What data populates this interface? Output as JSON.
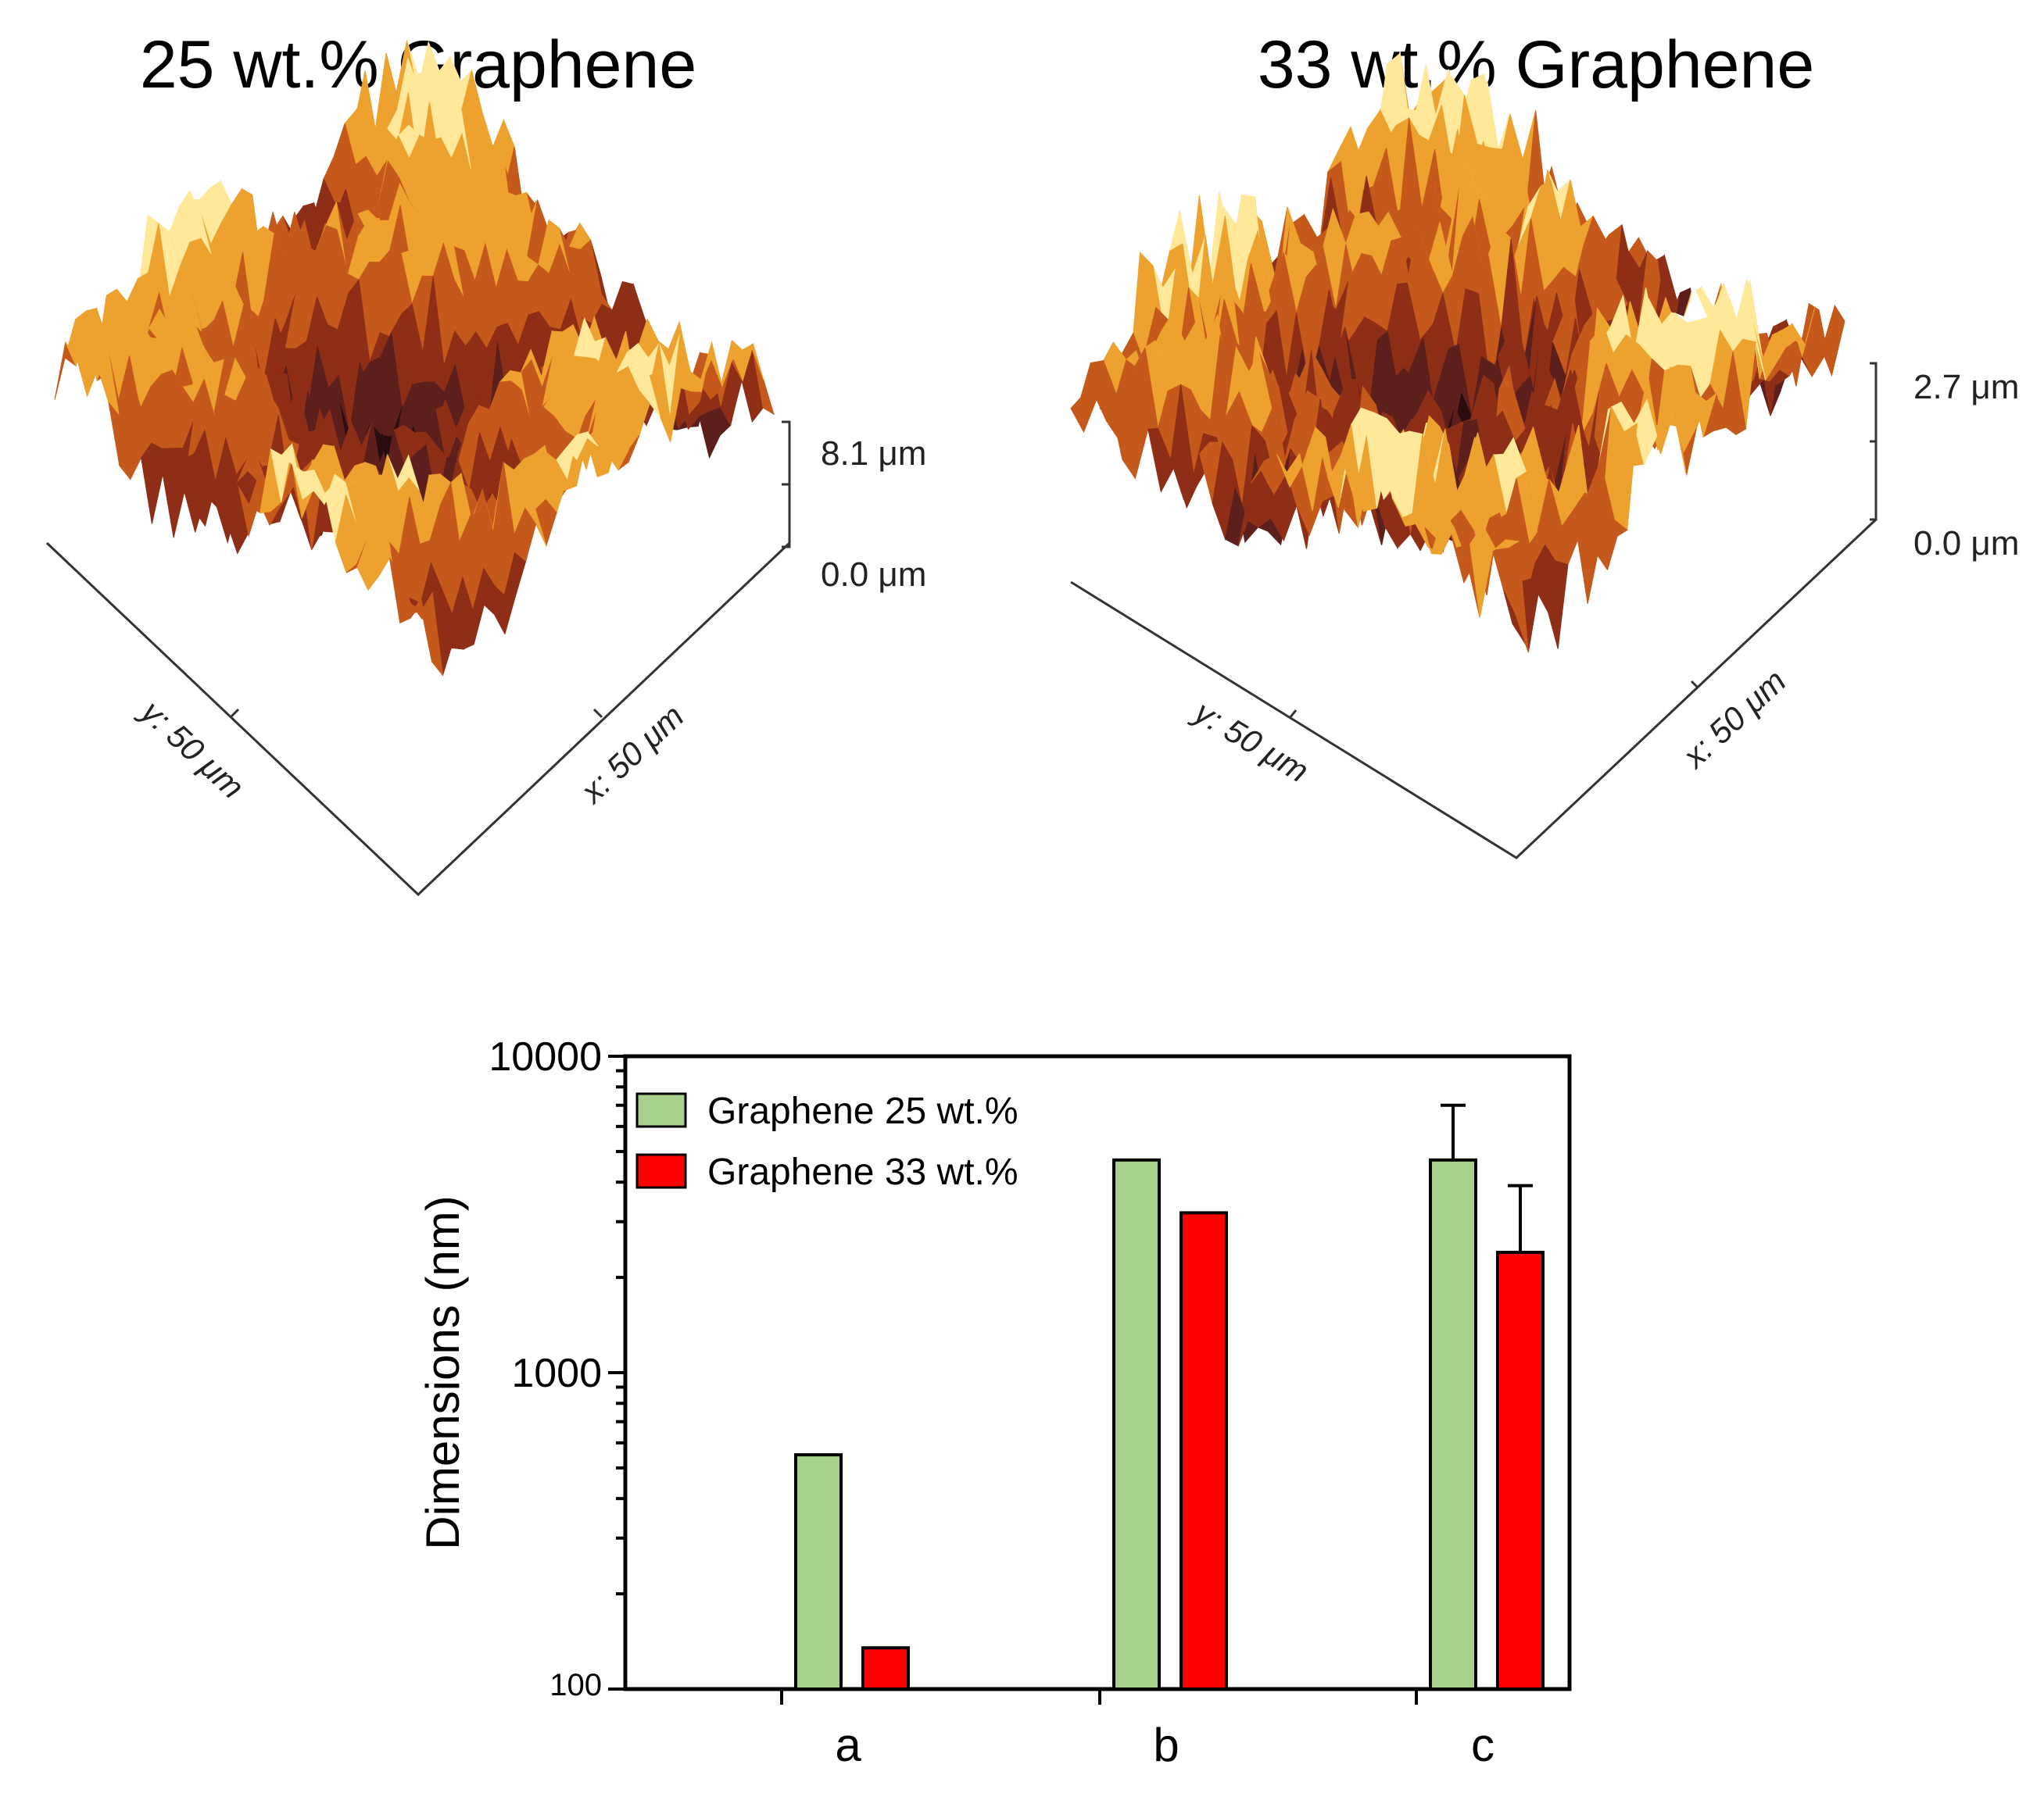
{
  "panels": [
    {
      "title": "25 wt.% Graphene",
      "z_max_label": "8.1 μm",
      "z_min_label": "0.0 μm",
      "y_axis_label": "y: 50 μm",
      "x_axis_label": "x: 50 μm",
      "colormap": [
        "#2a0d0f",
        "#5c1f1c",
        "#8f2e17",
        "#c5591c",
        "#eda22f",
        "#ffe89a",
        "#ffffff"
      ]
    },
    {
      "title": "33 wt.% Graphene",
      "z_max_label": "2.7 μm",
      "z_min_label": "0.0 μm",
      "y_axis_label": "y: 50 μm",
      "x_axis_label": "x: 50 μm",
      "colormap": [
        "#2a0d0f",
        "#5c1f1c",
        "#8f2e17",
        "#c5591c",
        "#eda22f",
        "#ffe89a",
        "#ffffff"
      ]
    }
  ],
  "chart_data": {
    "type": "bar",
    "title": "",
    "xlabel": "",
    "ylabel": "Dimensions (nm)",
    "yscale": "log",
    "ylim": [
      100,
      10000
    ],
    "yticks": [
      100,
      1000,
      10000
    ],
    "ytick_labels": [
      "100",
      "1000",
      "10000"
    ],
    "categories": [
      "a",
      "b",
      "c"
    ],
    "legend_position": "top-left",
    "series": [
      {
        "name": "Graphene 25 wt.%",
        "color": "#a9d18e",
        "values": [
          550,
          4700,
          4700
        ],
        "errors": [
          null,
          null,
          2300
        ]
      },
      {
        "name": "Graphene 33 wt.%",
        "color": "#ff0000",
        "values": [
          135,
          3200,
          2400
        ],
        "errors": [
          null,
          null,
          1500
        ]
      }
    ]
  }
}
